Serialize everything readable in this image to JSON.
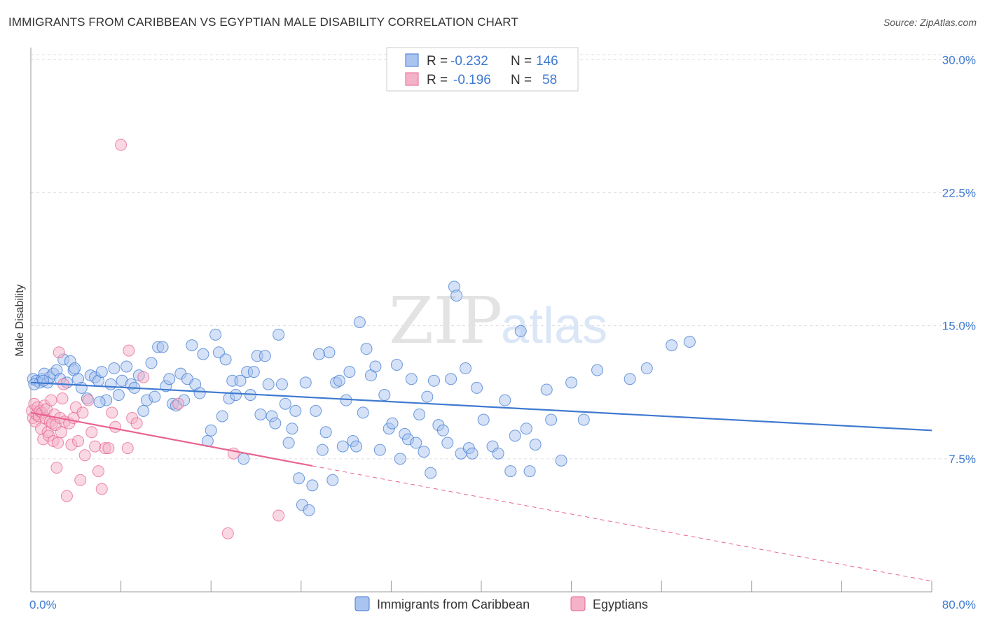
{
  "title": "IMMIGRANTS FROM CARIBBEAN VS EGYPTIAN MALE DISABILITY CORRELATION CHART",
  "source": "Source: ZipAtlas.com",
  "watermark": {
    "zip": "ZIP",
    "atlas": "atlas"
  },
  "colors": {
    "blue": "#3f7ad0",
    "blue_fill": "#a9c4ef",
    "pink": "#e8648f",
    "pink_fill": "#f4b2c8",
    "grid": "#dddddd"
  },
  "legend": {
    "rows": [
      {
        "r_label": "R =",
        "r_value": "-0.232",
        "n_label": "N =",
        "n_value": "146"
      },
      {
        "r_label": "R =",
        "r_value": "-0.196",
        "n_label": "N =",
        "n_value": "58"
      }
    ]
  },
  "bottom_legend": [
    "Immigrants from Caribbean",
    "Egyptians"
  ],
  "chart_data": {
    "type": "scatter",
    "title": "IMMIGRANTS FROM CARIBBEAN VS EGYPTIAN MALE DISABILITY CORRELATION CHART",
    "xlabel": "",
    "ylabel": "Male Disability",
    "xlim": [
      0,
      80
    ],
    "ylim": [
      0,
      31
    ],
    "x_tick_labels": [
      "0.0%",
      "80.0%"
    ],
    "y_ticks": [
      7.5,
      15.0,
      22.5,
      30.0
    ],
    "y_tick_labels": [
      "7.5%",
      "15.0%",
      "22.5%",
      "30.0%"
    ],
    "grid": true,
    "legend_position": "top-center",
    "series": [
      {
        "name": "Immigrants from Caribbean",
        "r": -0.232,
        "n": 146,
        "trend": {
          "x": [
            0,
            80
          ],
          "y": [
            11.8,
            9.1
          ]
        },
        "points": [
          [
            0.2,
            12.0
          ],
          [
            0.5,
            11.9
          ],
          [
            0.8,
            11.8
          ],
          [
            1.0,
            12.0
          ],
          [
            1.2,
            12.3
          ],
          [
            1.5,
            11.8
          ],
          [
            1.7,
            12.1
          ],
          [
            2.0,
            12.3
          ],
          [
            2.3,
            12.5
          ],
          [
            2.6,
            12.0
          ],
          [
            2.9,
            13.1
          ],
          [
            3.2,
            11.8
          ],
          [
            3.5,
            13.0
          ],
          [
            3.8,
            12.5
          ],
          [
            4.2,
            12.0
          ],
          [
            4.5,
            11.5
          ],
          [
            5.0,
            10.9
          ],
          [
            5.3,
            12.2
          ],
          [
            5.7,
            12.1
          ],
          [
            6.0,
            11.9
          ],
          [
            6.3,
            12.4
          ],
          [
            6.7,
            10.8
          ],
          [
            7.1,
            11.7
          ],
          [
            7.4,
            12.6
          ],
          [
            7.8,
            11.1
          ],
          [
            8.1,
            11.9
          ],
          [
            8.5,
            12.7
          ],
          [
            8.9,
            11.7
          ],
          [
            9.2,
            11.5
          ],
          [
            9.6,
            12.2
          ],
          [
            10.0,
            10.2
          ],
          [
            10.3,
            10.8
          ],
          [
            10.7,
            12.9
          ],
          [
            11.0,
            11.0
          ],
          [
            11.3,
            13.8
          ],
          [
            11.7,
            13.8
          ],
          [
            12.0,
            11.6
          ],
          [
            12.3,
            12.0
          ],
          [
            12.6,
            10.6
          ],
          [
            12.9,
            10.5
          ],
          [
            13.3,
            12.3
          ],
          [
            13.6,
            10.8
          ],
          [
            13.9,
            12.0
          ],
          [
            14.3,
            13.9
          ],
          [
            14.6,
            11.7
          ],
          [
            15.0,
            11.2
          ],
          [
            15.3,
            13.4
          ],
          [
            15.7,
            8.5
          ],
          [
            16.0,
            9.1
          ],
          [
            16.4,
            14.5
          ],
          [
            16.7,
            13.5
          ],
          [
            17.0,
            9.9
          ],
          [
            17.3,
            13.1
          ],
          [
            17.6,
            10.9
          ],
          [
            17.9,
            11.9
          ],
          [
            18.2,
            11.1
          ],
          [
            18.6,
            11.9
          ],
          [
            18.9,
            7.5
          ],
          [
            19.2,
            12.4
          ],
          [
            19.5,
            11.1
          ],
          [
            19.8,
            12.4
          ],
          [
            20.1,
            13.3
          ],
          [
            20.4,
            10.0
          ],
          [
            20.8,
            13.3
          ],
          [
            21.1,
            11.7
          ],
          [
            21.4,
            9.9
          ],
          [
            21.7,
            9.5
          ],
          [
            22.0,
            14.5
          ],
          [
            22.3,
            11.7
          ],
          [
            22.6,
            10.6
          ],
          [
            22.9,
            8.4
          ],
          [
            23.2,
            9.2
          ],
          [
            23.5,
            10.2
          ],
          [
            23.8,
            6.4
          ],
          [
            24.1,
            4.9
          ],
          [
            24.4,
            11.8
          ],
          [
            24.7,
            4.6
          ],
          [
            25.0,
            6.0
          ],
          [
            25.3,
            10.2
          ],
          [
            25.6,
            13.4
          ],
          [
            25.9,
            8.0
          ],
          [
            26.2,
            9.0
          ],
          [
            26.5,
            13.5
          ],
          [
            26.8,
            6.3
          ],
          [
            27.1,
            11.8
          ],
          [
            27.4,
            11.9
          ],
          [
            27.7,
            8.2
          ],
          [
            28.0,
            10.8
          ],
          [
            28.3,
            12.4
          ],
          [
            28.6,
            8.5
          ],
          [
            28.9,
            8.2
          ],
          [
            29.2,
            15.2
          ],
          [
            29.5,
            10.1
          ],
          [
            29.8,
            13.7
          ],
          [
            30.2,
            12.2
          ],
          [
            30.6,
            12.7
          ],
          [
            31.0,
            8.0
          ],
          [
            31.4,
            11.1
          ],
          [
            31.8,
            9.2
          ],
          [
            32.1,
            9.5
          ],
          [
            32.5,
            12.8
          ],
          [
            32.8,
            7.5
          ],
          [
            33.2,
            8.9
          ],
          [
            33.5,
            8.6
          ],
          [
            33.8,
            12.0
          ],
          [
            34.2,
            8.4
          ],
          [
            34.5,
            10.0
          ],
          [
            34.9,
            7.9
          ],
          [
            35.2,
            11.0
          ],
          [
            35.5,
            6.7
          ],
          [
            35.8,
            11.9
          ],
          [
            36.2,
            9.4
          ],
          [
            36.6,
            9.1
          ],
          [
            37.0,
            8.4
          ],
          [
            37.3,
            12.0
          ],
          [
            37.6,
            17.2
          ],
          [
            37.8,
            16.7
          ],
          [
            38.2,
            7.8
          ],
          [
            38.6,
            12.6
          ],
          [
            38.9,
            8.1
          ],
          [
            39.2,
            7.8
          ],
          [
            39.6,
            11.5
          ],
          [
            40.2,
            9.7
          ],
          [
            41.0,
            8.2
          ],
          [
            41.5,
            7.8
          ],
          [
            42.1,
            10.8
          ],
          [
            42.6,
            6.8
          ],
          [
            43.0,
            8.8
          ],
          [
            43.5,
            14.7
          ],
          [
            44.0,
            9.2
          ],
          [
            44.3,
            6.8
          ],
          [
            44.8,
            8.3
          ],
          [
            45.8,
            11.4
          ],
          [
            46.2,
            9.7
          ],
          [
            47.1,
            7.4
          ],
          [
            48.0,
            11.8
          ],
          [
            49.1,
            9.7
          ],
          [
            50.3,
            12.5
          ],
          [
            53.2,
            12.0
          ],
          [
            54.7,
            12.6
          ],
          [
            56.9,
            13.9
          ],
          [
            58.5,
            14.1
          ],
          [
            0.3,
            11.7
          ],
          [
            1.1,
            11.9
          ],
          [
            3.9,
            12.6
          ],
          [
            6.1,
            10.7
          ]
        ]
      },
      {
        "name": "Egyptians",
        "r": -0.196,
        "n": 58,
        "trend": {
          "x": [
            0,
            25
          ],
          "y": [
            10.1,
            7.1
          ]
        },
        "trend_dashed": {
          "x": [
            25,
            80
          ],
          "y": [
            7.1,
            0.6
          ]
        },
        "points": [
          [
            0.1,
            10.2
          ],
          [
            0.2,
            9.8
          ],
          [
            0.3,
            10.6
          ],
          [
            0.4,
            9.6
          ],
          [
            0.5,
            10.0
          ],
          [
            0.6,
            10.4
          ],
          [
            0.7,
            9.9
          ],
          [
            0.8,
            10.2
          ],
          [
            0.9,
            9.2
          ],
          [
            1.0,
            10.1
          ],
          [
            1.1,
            8.6
          ],
          [
            1.2,
            10.5
          ],
          [
            1.3,
            9.8
          ],
          [
            1.4,
            10.3
          ],
          [
            1.5,
            9.0
          ],
          [
            1.6,
            8.8
          ],
          [
            1.7,
            9.6
          ],
          [
            1.8,
            10.8
          ],
          [
            1.9,
            9.5
          ],
          [
            2.0,
            8.5
          ],
          [
            2.1,
            10.0
          ],
          [
            2.2,
            9.4
          ],
          [
            2.3,
            7.0
          ],
          [
            2.4,
            8.4
          ],
          [
            2.5,
            13.5
          ],
          [
            2.6,
            9.8
          ],
          [
            2.7,
            9.0
          ],
          [
            2.8,
            10.9
          ],
          [
            2.9,
            11.7
          ],
          [
            3.0,
            9.6
          ],
          [
            3.2,
            5.4
          ],
          [
            3.4,
            9.5
          ],
          [
            3.6,
            8.3
          ],
          [
            3.8,
            9.8
          ],
          [
            4.0,
            10.4
          ],
          [
            4.2,
            8.5
          ],
          [
            4.4,
            6.3
          ],
          [
            4.6,
            10.1
          ],
          [
            4.8,
            7.7
          ],
          [
            5.1,
            10.8
          ],
          [
            5.4,
            9.0
          ],
          [
            5.7,
            8.2
          ],
          [
            6.0,
            6.8
          ],
          [
            6.3,
            5.8
          ],
          [
            6.6,
            8.1
          ],
          [
            6.9,
            8.1
          ],
          [
            7.2,
            10.1
          ],
          [
            7.5,
            9.3
          ],
          [
            8.0,
            25.2
          ],
          [
            8.6,
            8.1
          ],
          [
            8.7,
            13.6
          ],
          [
            9.0,
            9.8
          ],
          [
            9.4,
            9.5
          ],
          [
            10.0,
            12.1
          ],
          [
            13.1,
            10.6
          ],
          [
            17.5,
            3.3
          ],
          [
            18.0,
            7.8
          ],
          [
            22.0,
            4.3
          ]
        ]
      }
    ]
  }
}
